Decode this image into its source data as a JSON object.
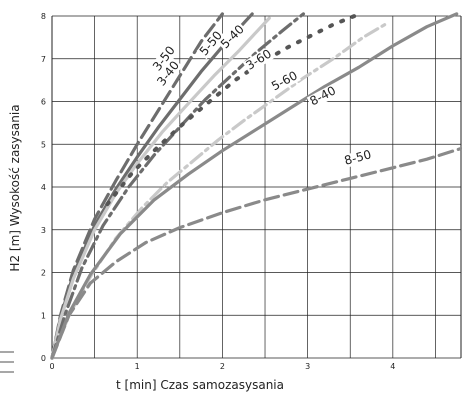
{
  "chart_data": {
    "type": "line",
    "xlabel": "t [min] Czas samozasysania",
    "ylabel": "H2 [m] Wysokość zasysania",
    "xlim": [
      0,
      4.8
    ],
    "ylim": [
      0,
      8
    ],
    "x_ticks": [
      "0",
      "1",
      "2",
      "3",
      "4"
    ],
    "y_ticks": [
      "0",
      "1",
      "2",
      "3",
      "4",
      "5",
      "6",
      "7",
      "8"
    ],
    "grid": true,
    "colors": {
      "grid": "#222222",
      "dark_gray": "#6d6d6d",
      "mid_gray": "#8a8a8a",
      "light_gray": "#c9c9c9",
      "dot_dark": "#555555"
    },
    "series": [
      {
        "name": "3-50",
        "style": "dashed",
        "color": "#6d6d6d",
        "x": [
          0,
          0.1,
          0.25,
          0.5,
          0.75,
          1.0,
          1.25,
          1.5,
          1.75,
          2.0
        ],
        "y": [
          0,
          1.0,
          2.05,
          3.25,
          4.15,
          5.0,
          5.8,
          6.6,
          7.4,
          8.05
        ]
      },
      {
        "name": "3-40",
        "style": "solid",
        "color": "#6d6d6d",
        "x": [
          0,
          0.1,
          0.25,
          0.5,
          0.75,
          1.0,
          1.25,
          1.5,
          1.75,
          2.05,
          2.35
        ],
        "y": [
          0,
          0.95,
          1.95,
          3.1,
          3.95,
          4.7,
          5.4,
          6.05,
          6.7,
          7.4,
          8.05
        ]
      },
      {
        "name": "5-50",
        "style": "solid",
        "color": "#c9c9c9",
        "x": [
          0,
          0.1,
          0.25,
          0.5,
          0.75,
          1.0,
          1.3,
          1.6,
          1.9,
          2.2,
          2.55
        ],
        "y": [
          0,
          0.9,
          1.85,
          3.0,
          3.85,
          4.55,
          5.3,
          5.95,
          6.6,
          7.2,
          7.95
        ]
      },
      {
        "name": "5-40",
        "style": "dashdot",
        "color": "#6d6d6d",
        "x": [
          0,
          0.15,
          0.35,
          0.6,
          0.9,
          1.2,
          1.5,
          1.8,
          2.1,
          2.4,
          2.7,
          2.95
        ],
        "y": [
          0,
          1.0,
          2.1,
          3.1,
          4.0,
          4.75,
          5.4,
          6.05,
          6.6,
          7.15,
          7.65,
          8.05
        ]
      },
      {
        "name": "3-60",
        "style": "dotted",
        "color": "#555555",
        "x": [
          0.65,
          0.95,
          1.25,
          1.55,
          1.85,
          2.15,
          2.45,
          2.75,
          3.05,
          3.3,
          3.55
        ],
        "y": [
          3.6,
          4.35,
          4.95,
          5.5,
          6.0,
          6.5,
          6.9,
          7.25,
          7.55,
          7.8,
          8.0
        ]
      },
      {
        "name": "5-60",
        "style": "dashdot",
        "color": "#c9c9c9",
        "x": [
          0,
          0.2,
          0.45,
          0.75,
          1.05,
          1.35,
          1.65,
          1.95,
          2.25,
          2.6,
          2.95,
          3.3,
          3.65,
          3.95
        ],
        "y": [
          0,
          1.0,
          1.9,
          2.8,
          3.5,
          4.1,
          4.6,
          5.1,
          5.55,
          6.05,
          6.55,
          7.0,
          7.5,
          7.85
        ]
      },
      {
        "name": "8-40",
        "style": "solid",
        "color": "#8a8a8a",
        "x": [
          0,
          0.2,
          0.45,
          0.8,
          1.2,
          1.6,
          2.0,
          2.4,
          2.8,
          3.2,
          3.6,
          4.0,
          4.4,
          4.75
        ],
        "y": [
          0,
          1.05,
          1.95,
          2.9,
          3.7,
          4.3,
          4.85,
          5.35,
          5.85,
          6.35,
          6.8,
          7.3,
          7.75,
          8.05
        ]
      },
      {
        "name": "8-50",
        "style": "dashed",
        "color": "#8a8a8a",
        "x": [
          0,
          0.2,
          0.45,
          0.75,
          1.1,
          1.5,
          2.0,
          2.5,
          3.0,
          3.5,
          4.0,
          4.4,
          4.8
        ],
        "y": [
          0,
          1.0,
          1.75,
          2.25,
          2.7,
          3.05,
          3.4,
          3.7,
          3.95,
          4.2,
          4.45,
          4.65,
          4.9
        ]
      }
    ]
  }
}
